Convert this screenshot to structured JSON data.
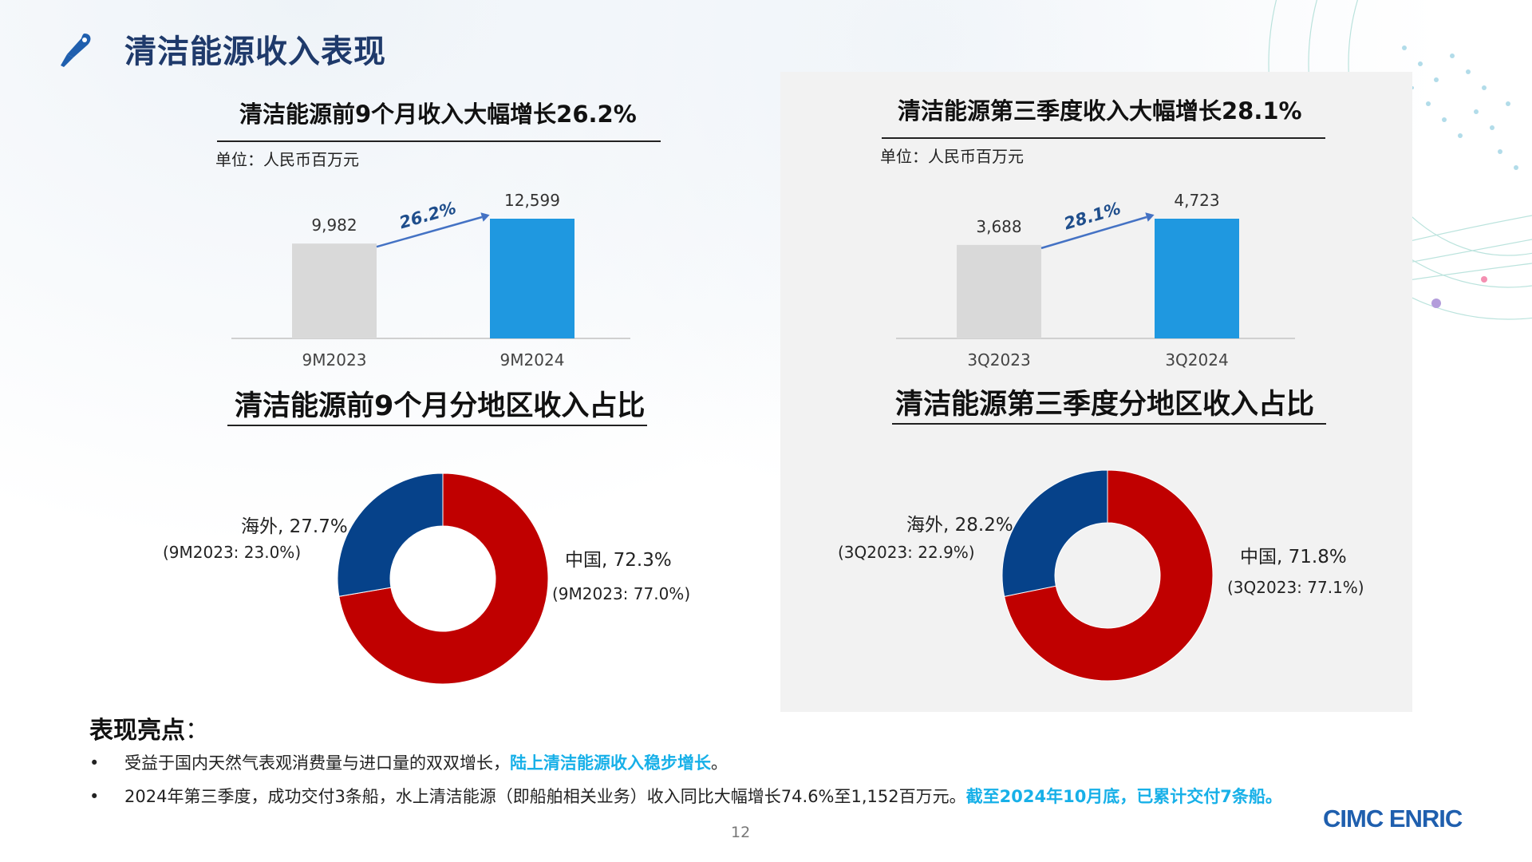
{
  "page": {
    "title": "清洁能源收入表现",
    "page_number": "12",
    "logo_text": "CIMC ENRIC",
    "icon": "pen-icon"
  },
  "colors": {
    "title_blue": "#1f3a6b",
    "bar_prior": "#d9d9d9",
    "bar_current": "#1f98e0",
    "growth_arrow": "#4472c4",
    "growth_text": "#1f4e8c",
    "donut_china": "#c00000",
    "donut_overseas": "#06428a",
    "accent": "#17b0e8"
  },
  "sections": {
    "nine_month_bar": {
      "title": "清洁能源前9个月收入大幅增长26.2%",
      "unit": "单位：人民币百万元",
      "growth_label": "26.2%"
    },
    "q3_bar": {
      "title": "清洁能源第三季度收入大幅增长28.1%",
      "unit": "单位：人民币百万元",
      "growth_label": "28.1%"
    },
    "nine_month_donut": {
      "title": "清洁能源前9个月分地区收入占比",
      "china_label": "中国, 72.3%",
      "china_prior": "(9M2023: 77.0%)",
      "overseas_label": "海外, 27.7%",
      "overseas_prior": "(9M2023: 23.0%)"
    },
    "q3_donut": {
      "title": "清洁能源第三季度分地区收入占比",
      "china_label": "中国, 71.8%",
      "china_prior": "(3Q2023: 77.1%)",
      "overseas_label": "海外, 28.2%",
      "overseas_prior": "(3Q2023: 22.9%)"
    }
  },
  "chart_data": [
    {
      "type": "bar",
      "title": "清洁能源前9个月收入大幅增长26.2%",
      "categories": [
        "9M2023",
        "9M2024"
      ],
      "values": [
        9982,
        12599
      ],
      "value_labels": [
        "9,982",
        "12,599"
      ],
      "ylabel": "",
      "xlabel": "",
      "ylim": [
        0,
        13000
      ],
      "growth": "26.2%"
    },
    {
      "type": "bar",
      "title": "清洁能源第三季度收入大幅增长28.1%",
      "categories": [
        "3Q2023",
        "3Q2024"
      ],
      "values": [
        3688,
        4723
      ],
      "value_labels": [
        "3,688",
        "4,723"
      ],
      "ylabel": "",
      "xlabel": "",
      "ylim": [
        0,
        5000
      ],
      "growth": "28.1%"
    },
    {
      "type": "pie",
      "title": "清洁能源前9个月分地区收入占比",
      "categories": [
        "中国",
        "海外"
      ],
      "values": [
        72.3,
        27.7
      ],
      "prior_values": [
        77.0,
        23.0
      ]
    },
    {
      "type": "pie",
      "title": "清洁能源第三季度分地区收入占比",
      "categories": [
        "中国",
        "海外"
      ],
      "values": [
        71.8,
        28.2
      ],
      "prior_values": [
        77.1,
        22.9
      ]
    }
  ],
  "highlights": {
    "title": "表现亮点",
    "colon": "：",
    "bullet_marker": "•",
    "items": [
      {
        "text": "受益于国内天然气表观消费量与进口量的双双增长，",
        "accent": "陆上清洁能源收入稳步增长",
        "tail": "。"
      },
      {
        "text": "2024年第三季度，成功交付3条船，水上清洁能源（即船舶相关业务）收入同比大幅增长74.6%至1,152百万元。",
        "accent": "截至2024年10月底，已累计交付7条船。",
        "tail": ""
      }
    ]
  }
}
